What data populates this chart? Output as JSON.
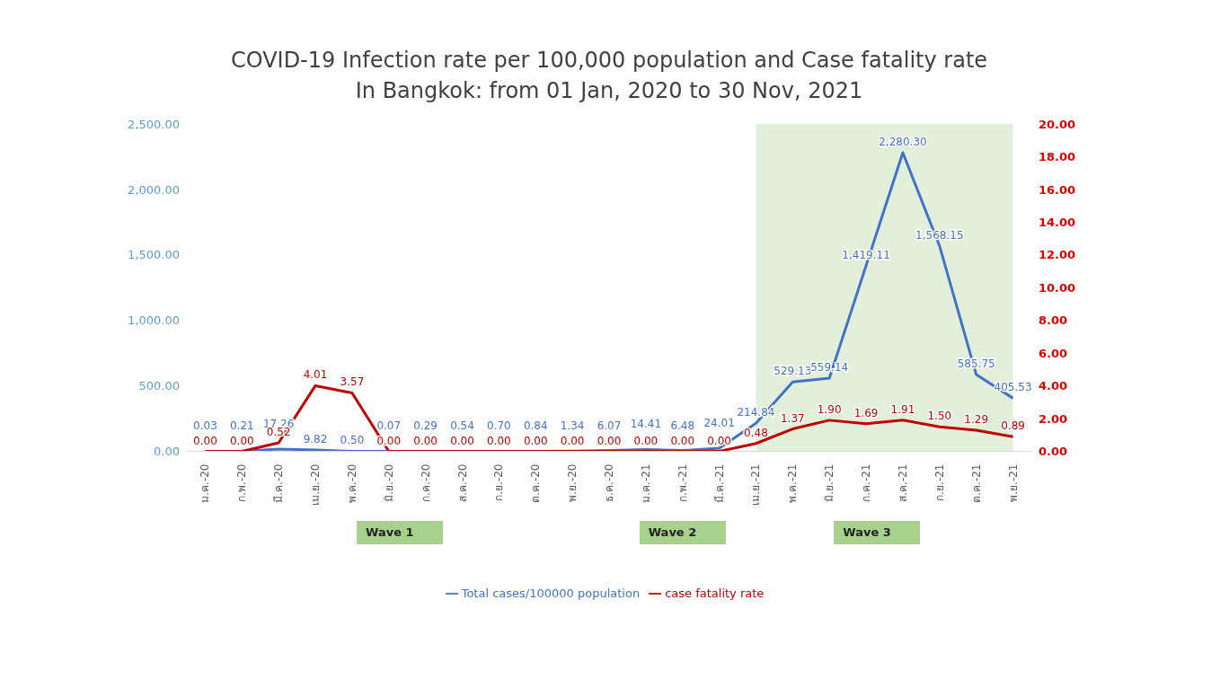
{
  "chart_data": {
    "type": "line",
    "title": "COVID-19 Infection rate per 100,000 population and Case fatality rate",
    "subtitle": "In Bangkok: from 01 Jan, 2020 to 30 Nov, 2021",
    "categories": [
      "ม.ค.-20",
      "ก.พ.-20",
      "มี.ค.-20",
      "เม.ย.-20",
      "พ.ค.-20",
      "มิ.ย.-20",
      "ก.ค.-20",
      "ส.ค.-20",
      "ก.ย.-20",
      "ต.ค.-20",
      "พ.ย.-20",
      "ธ.ค.-20",
      "ม.ค.-21",
      "ก.พ.-21",
      "มี.ค.-21",
      "เม.ย.-21",
      "พ.ค.-21",
      "มิ.ย.-21",
      "ก.ค.-21",
      "ส.ค.-21",
      "ก.ย.-21",
      "ต.ค.-21",
      "พ.ย.-21"
    ],
    "series": [
      {
        "name": "Total cases/100000 population",
        "color": "#4472c4",
        "values": [
          0.03,
          0.21,
          17.26,
          9.82,
          0.5,
          0.07,
          0.29,
          0.54,
          0.7,
          0.84,
          1.34,
          6.07,
          14.41,
          6.48,
          24.01,
          214.84,
          529.13,
          559.14,
          1419.11,
          2280.3,
          1568.15,
          585.75,
          405.53
        ],
        "value_labels": [
          "0.03",
          "0.21",
          "17.26",
          "9.82",
          "0.50",
          "0.07",
          "0.29",
          "0.54",
          "0.70",
          "0.84",
          "1.34",
          "6.07",
          "14.41",
          "6.48",
          "24.01",
          "214.84",
          "529.13",
          "559.14",
          "1,419.11",
          "2,280.30",
          "1,568.15",
          "585.75",
          "405.53"
        ]
      },
      {
        "name": "case fatality rate",
        "color": "#c00000",
        "axis": "y2",
        "values": [
          0,
          0,
          0.52,
          4.01,
          3.57,
          0,
          0,
          0,
          0,
          0,
          0,
          0,
          0,
          0,
          0,
          0.48,
          1.37,
          1.9,
          1.69,
          1.91,
          1.5,
          1.29,
          0.89
        ],
        "value_labels": [
          "0.00",
          "0.00",
          "0.52",
          "4.01",
          "3.57",
          "0.00",
          "0.00",
          "0.00",
          "0.00",
          "0.00",
          "0.00",
          "0.00",
          "0.00",
          "0.00",
          "0.00",
          "0.48",
          "1.37",
          "1.90",
          "1.69",
          "1.91",
          "1.50",
          "1.29",
          "0.89"
        ]
      }
    ],
    "ylim": [
      0,
      2500
    ],
    "yticks": [
      {
        "value": 0,
        "label": "0.00"
      },
      {
        "value": 500,
        "label": "500.00"
      },
      {
        "value": 1000,
        "label": "1,000.00"
      },
      {
        "value": 1500,
        "label": "1,500.00"
      },
      {
        "value": 2000,
        "label": "2,000.00"
      },
      {
        "value": 2500,
        "label": "2,500.00"
      }
    ],
    "y2lim": [
      0,
      20
    ],
    "y2ticks": [
      {
        "value": 0,
        "label": "0.00"
      },
      {
        "value": 2,
        "label": "2.00"
      },
      {
        "value": 4,
        "label": "4.00"
      },
      {
        "value": 6,
        "label": "6.00"
      },
      {
        "value": 8,
        "label": "8.00"
      },
      {
        "value": 10,
        "label": "10.00"
      },
      {
        "value": 12,
        "label": "12.00"
      },
      {
        "value": 14,
        "label": "14.00"
      },
      {
        "value": 16,
        "label": "16.00"
      },
      {
        "value": 18,
        "label": "18.00"
      },
      {
        "value": 20,
        "label": "20.00"
      }
    ],
    "bands": [
      {
        "axis": "x",
        "from": "เม.ย.-21",
        "to": "พ.ย.-21",
        "label": null,
        "color": "#e2efda"
      }
    ],
    "annotations": [
      "Wave 1",
      "Wave 2",
      "Wave 3"
    ],
    "legend": "bottom",
    "grid": false,
    "marker": "none",
    "line_style": "solid"
  }
}
